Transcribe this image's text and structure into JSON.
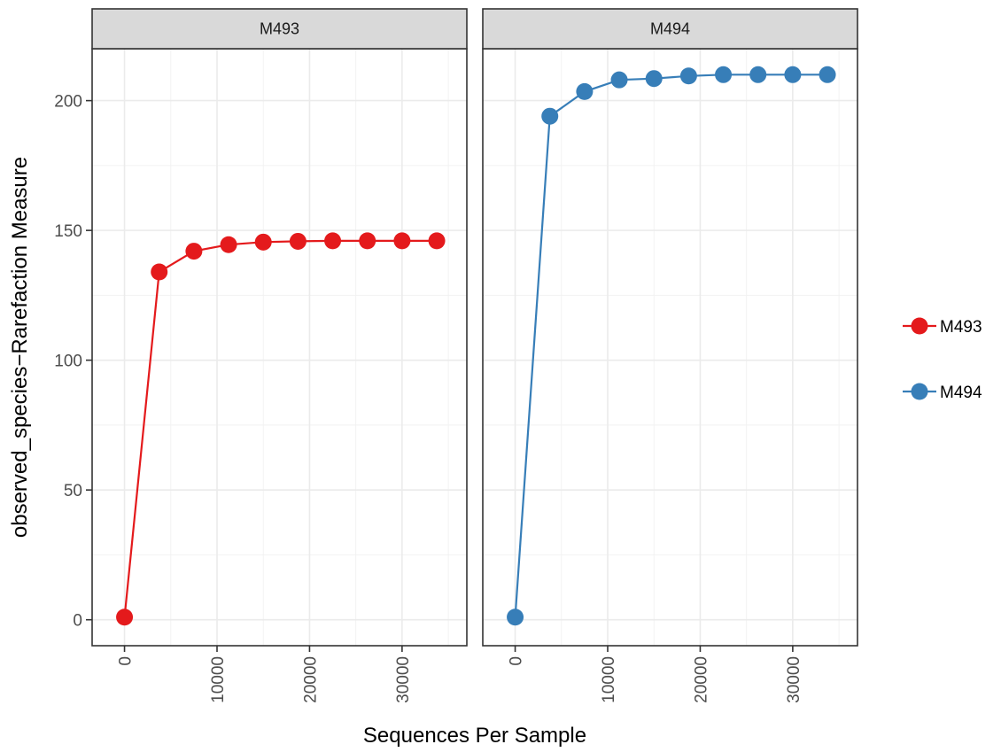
{
  "chart_data": {
    "type": "line",
    "xlabel": "Sequences Per Sample",
    "ylabel": "observed_species−Rarefaction Measure",
    "xlim": [
      -3500,
      37000
    ],
    "ylim": [
      -10,
      220
    ],
    "x_ticks": [
      0,
      10000,
      20000,
      30000
    ],
    "x_tick_labels": [
      "0",
      "10000",
      "20000",
      "30000"
    ],
    "y_ticks": [
      0,
      50,
      100,
      150,
      200
    ],
    "y_tick_labels": [
      "0",
      "50",
      "100",
      "150",
      "200"
    ],
    "grid": true,
    "legend_position": "right",
    "facets": [
      {
        "label": "M493",
        "series": "M493",
        "color": "#e41a1c",
        "x": [
          0,
          3750,
          7500,
          11250,
          15000,
          18750,
          22500,
          26250,
          30000,
          33750
        ],
        "y": [
          1,
          134,
          142,
          144.5,
          145.5,
          145.8,
          146,
          146,
          146,
          146
        ]
      },
      {
        "label": "M494",
        "series": "M494",
        "color": "#377eb8",
        "x": [
          0,
          3750,
          7500,
          11250,
          15000,
          18750,
          22500,
          26250,
          30000,
          33750
        ],
        "y": [
          1,
          194,
          203.5,
          208,
          208.5,
          209.5,
          210,
          210,
          210,
          210
        ]
      }
    ],
    "legend": [
      {
        "name": "M493",
        "color": "#e41a1c"
      },
      {
        "name": "M494",
        "color": "#377eb8"
      }
    ]
  }
}
